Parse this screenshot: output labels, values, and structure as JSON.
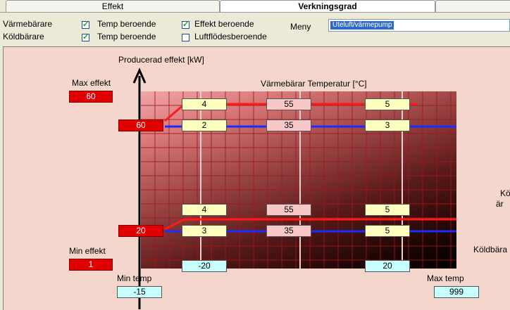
{
  "tabs": [
    {
      "label": "Effekt",
      "active": false
    },
    {
      "label": "Verkningsgrad",
      "active": true
    },
    {
      "label": "",
      "active": false
    }
  ],
  "settings": {
    "row1_label": "Värmebärare",
    "row2_label": "Köldbärare",
    "vb_temp_dep": {
      "label": "Temp beroende",
      "checked": true
    },
    "vb_effekt_dep": {
      "label": "Effekt beroende",
      "checked": true
    },
    "kb_temp_dep": {
      "label": "Temp beroende",
      "checked": true
    },
    "kb_luft_dep": {
      "label": "Luftflödesberoende",
      "checked": false
    },
    "meny_label": "Meny",
    "meny_value": "Uteluft/värmepump"
  },
  "chart": {
    "y_axis_label": "Producerad effekt [kW]",
    "x_title": "Värmebärar Temperatur  [°C]",
    "max_effekt_label": "Max effekt",
    "max_effekt_value": "60",
    "min_effekt_label": "Min effekt",
    "min_effekt_value": "1",
    "min_temp_label": "Min temp",
    "min_temp_value": "-15",
    "max_temp_label": "Max temp",
    "max_temp_value": "999",
    "upper_effekt": "60",
    "lower_effekt": "20",
    "upper_row_top": [
      "4",
      "55",
      "5"
    ],
    "upper_row_bottom": [
      "2",
      "35",
      "3"
    ],
    "lower_row_top": [
      "4",
      "55",
      "5"
    ],
    "lower_row_bottom": [
      "3",
      "35",
      "5"
    ],
    "kb_temp_left": "-20",
    "kb_temp_right": "20",
    "right_text_1": "Kö",
    "right_text_2": "är",
    "right_text_3": "Köldbära"
  },
  "colors": {
    "red_line": "#ff1a1a",
    "blue_line": "#1a2cff",
    "panel_bg": "#f5d6cc"
  }
}
